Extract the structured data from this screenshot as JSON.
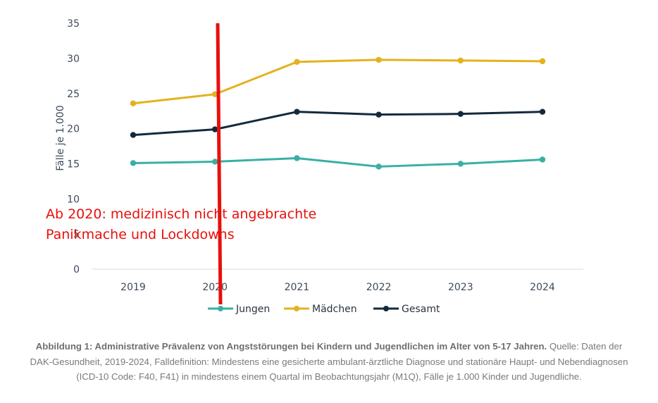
{
  "chart_data": {
    "type": "line",
    "title": "",
    "ylabel": "Fälle je 1.000",
    "xlabel": "",
    "categories": [
      "2019",
      "2020",
      "2021",
      "2022",
      "2023",
      "2024"
    ],
    "yticks": [
      "0",
      "5",
      "10",
      "15",
      "20",
      "25",
      "30",
      "35"
    ],
    "ylim": [
      0,
      35
    ],
    "grid": false,
    "legend_position": "bottom",
    "series": [
      {
        "name": "Jungen",
        "color": "#3aafa4",
        "values": [
          15.1,
          15.3,
          15.8,
          14.6,
          15.0,
          15.6
        ]
      },
      {
        "name": "Mädchen",
        "color": "#e3b21e",
        "values": [
          23.6,
          24.9,
          29.5,
          29.8,
          29.7,
          29.6
        ]
      },
      {
        "name": "Gesamt",
        "color": "#132a3c",
        "values": [
          19.1,
          19.9,
          22.4,
          22.0,
          22.1,
          22.4
        ]
      }
    ],
    "annotation": {
      "lines": [
        "Ab 2020: medizinisch nicht angebrachte",
        "Panikmache und Lockdowns"
      ],
      "color": "#e8100c",
      "marker_category": "2020"
    }
  },
  "caption": {
    "bold": "Abbildung 1: Administrative Prävalenz von Angststörungen bei Kindern und Jugendlichen im Alter von 5-17 Jahren.",
    "text": " Quelle: Daten der DAK-Gesundheit, 2019-2024, Falldefinition: Mindestens eine gesicherte ambulant-ärztliche Diagnose und stationäre Haupt- und Nebendiagnosen (ICD-10 Code: F40, F41) in mindestens einem Quartal im Beobachtungsjahr (M1Q), Fälle je 1.000 Kinder und Jugendliche."
  }
}
